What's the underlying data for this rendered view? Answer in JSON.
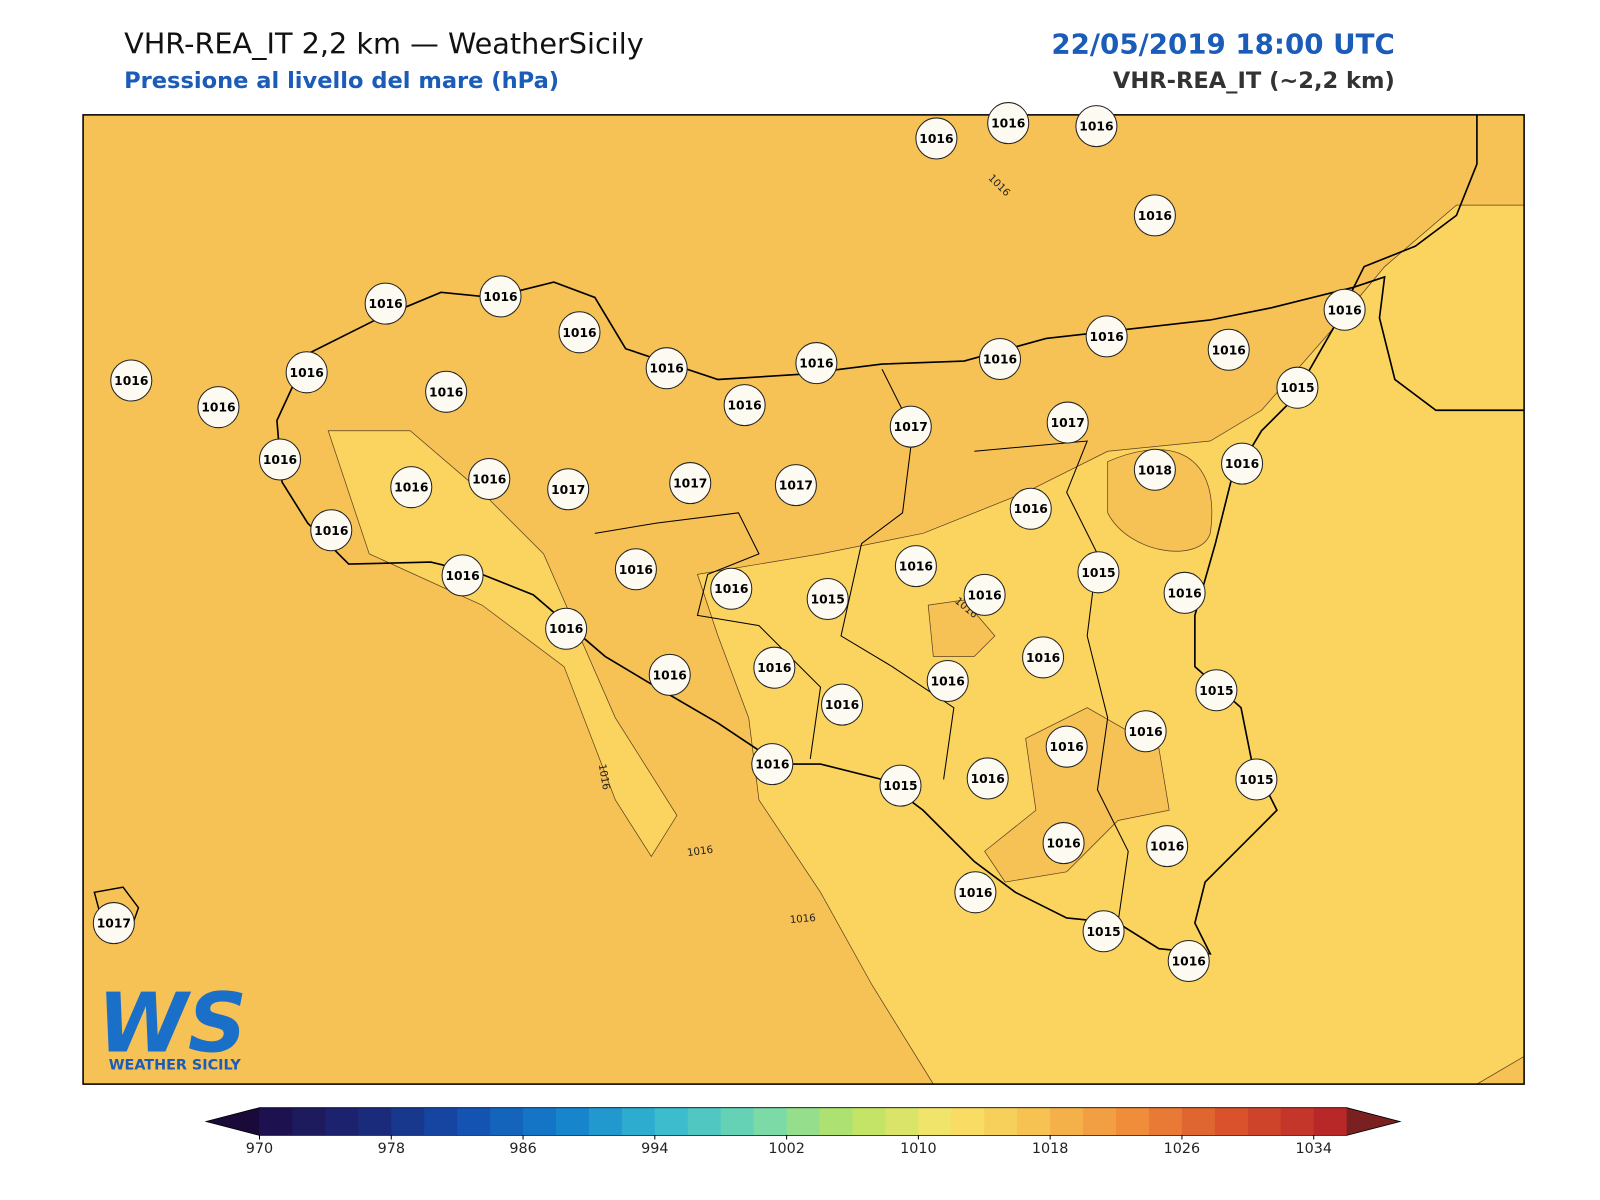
{
  "header": {
    "title": "VHR-REA_IT 2,2 km — WeatherSicily",
    "subtitle": "Pressione al livello del mare (hPa)",
    "date": "22/05/2019 18:00 UTC",
    "model": "VHR-REA_IT (~2,2 km)"
  },
  "stations": [
    1016,
    1016,
    1016,
    1016,
    1016,
    1016,
    1016,
    1016,
    1016,
    1016,
    1016,
    1016,
    1016,
    1015,
    1016,
    1016,
    1016,
    1016,
    1016,
    1017,
    1017,
    1018,
    1016,
    1016,
    1016,
    1016,
    1017,
    1017,
    1017,
    1016,
    1016,
    1016,
    1016,
    1016,
    1015,
    1016,
    1016,
    1015,
    1016,
    1016,
    1016,
    1016,
    1016,
    1016,
    1016,
    1015,
    1016,
    1016,
    1016,
    1015,
    1016,
    1015,
    1016,
    1016,
    1016,
    1015,
    1016,
    1017
  ],
  "contour_labels": [
    1016,
    1016,
    1016,
    1016,
    1016
  ],
  "colorbar": {
    "clim": [
      970,
      1036
    ],
    "step": 2,
    "ticks": [
      970,
      978,
      986,
      994,
      1002,
      1010,
      1018,
      1026,
      1034
    ],
    "colormap": [
      "#1e1150",
      "#1b2a7a",
      "#1450b0",
      "#1480cc",
      "#34b8d0",
      "#70d8b0",
      "#b8e468",
      "#f8e46a",
      "#f6be50",
      "#ee8a38",
      "#d8502c",
      "#b82828"
    ],
    "under": "#1a0a3a",
    "over": "#7a2020"
  },
  "logo": {
    "mark": "WS",
    "name": "WEATHER SICILY"
  }
}
